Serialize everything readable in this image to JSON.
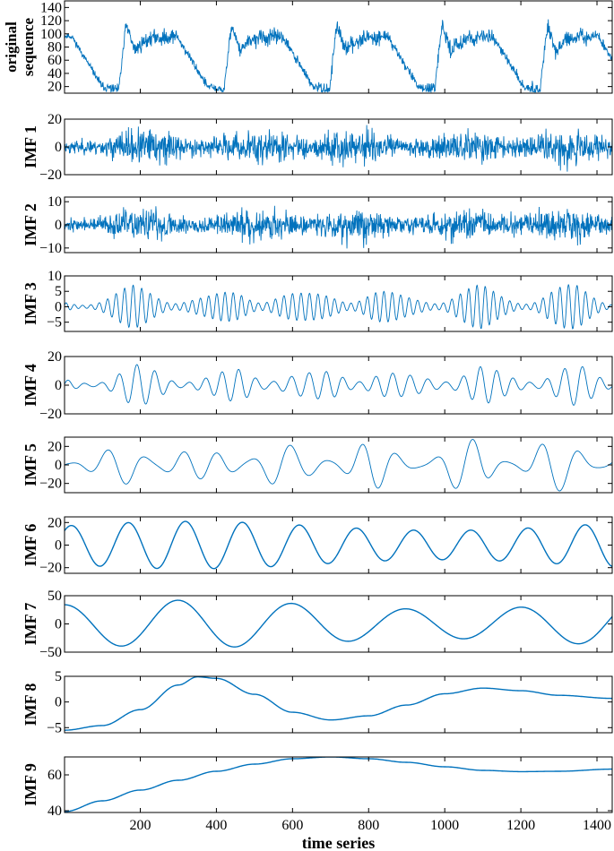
{
  "chart_data": [
    {
      "type": "line",
      "ylabel": "original sequence",
      "yticks": [
        20,
        40,
        60,
        80,
        100,
        120,
        140
      ],
      "ylim": [
        10,
        150
      ],
      "xlim": [
        1,
        1440
      ],
      "generator": "original",
      "seed": 11
    },
    {
      "type": "line",
      "ylabel": "IMF 1",
      "yticks": [
        -20,
        0,
        20
      ],
      "ylim": [
        -20,
        20
      ],
      "xlim": [
        1,
        1440
      ],
      "generator": "noise",
      "amplitude": 16,
      "seed": 23
    },
    {
      "type": "line",
      "ylabel": "IMF 2",
      "yticks": [
        -10,
        0,
        10
      ],
      "ylim": [
        -12,
        12
      ],
      "xlim": [
        1,
        1440
      ],
      "generator": "noise",
      "amplitude": 9,
      "seed": 37
    },
    {
      "type": "line",
      "ylabel": "IMF 3",
      "yticks": [
        -5,
        0,
        5,
        10
      ],
      "ylim": [
        -8,
        10
      ],
      "xlim": [
        1,
        1440
      ],
      "generator": "oscillation",
      "period": 22,
      "amplitude": 5,
      "seed": 41
    },
    {
      "type": "line",
      "ylabel": "IMF 4",
      "yticks": [
        -20,
        0,
        20
      ],
      "ylim": [
        -20,
        20
      ],
      "xlim": [
        1,
        1440
      ],
      "generator": "oscillation",
      "period": 45,
      "amplitude": 10,
      "seed": 53
    },
    {
      "type": "line",
      "ylabel": "IMF 5",
      "yticks": [
        -20,
        0,
        20
      ],
      "ylim": [
        -30,
        30
      ],
      "xlim": [
        1,
        1440
      ],
      "generator": "oscillation",
      "period": 95,
      "amplitude": 20,
      "seed": 61
    },
    {
      "type": "line",
      "ylabel": "IMF 6",
      "yticks": [
        -20,
        0,
        20
      ],
      "ylim": [
        -25,
        25
      ],
      "xlim": [
        1,
        1440
      ],
      "generator": "sine",
      "period": 150,
      "amplitude": 20,
      "phase": 0.8,
      "seed": 71
    },
    {
      "type": "line",
      "ylabel": "IMF 7",
      "yticks": [
        -50,
        0,
        50
      ],
      "ylim": [
        -50,
        50
      ],
      "xlim": [
        1,
        1440
      ],
      "generator": "sine",
      "period": 300,
      "amplitude": 40,
      "phase": 1.6,
      "seed": 83
    },
    {
      "type": "line",
      "ylabel": "IMF 8",
      "yticks": [
        -5,
        0,
        5
      ],
      "ylim": [
        -6,
        5
      ],
      "xlim": [
        1,
        1440
      ],
      "x": [
        1,
        100,
        200,
        300,
        350,
        400,
        500,
        600,
        700,
        800,
        900,
        1000,
        1100,
        1200,
        1300,
        1440
      ],
      "y": [
        -5.5,
        -4.6,
        -1.5,
        3.3,
        4.9,
        4.6,
        1.5,
        -2.0,
        -3.5,
        -2.7,
        -0.6,
        1.6,
        2.7,
        2.2,
        1.3,
        0.7
      ]
    },
    {
      "type": "line",
      "ylabel": "IMF 9",
      "xlabel": "time series",
      "yticks": [
        40,
        60
      ],
      "ylim": [
        39,
        70
      ],
      "xlim": [
        1,
        1440
      ],
      "xticks": [
        200,
        400,
        600,
        800,
        1000,
        1200,
        1400
      ],
      "x": [
        1,
        100,
        200,
        300,
        400,
        500,
        600,
        700,
        800,
        900,
        1000,
        1100,
        1200,
        1300,
        1440
      ],
      "y": [
        39.5,
        45.5,
        51.5,
        57.0,
        62.0,
        66.0,
        69.0,
        70.0,
        69.0,
        67.0,
        64.5,
        62.5,
        61.8,
        62.0,
        63.2
      ]
    }
  ],
  "colors": {
    "line": "#0072BD",
    "axis": "#000000"
  }
}
